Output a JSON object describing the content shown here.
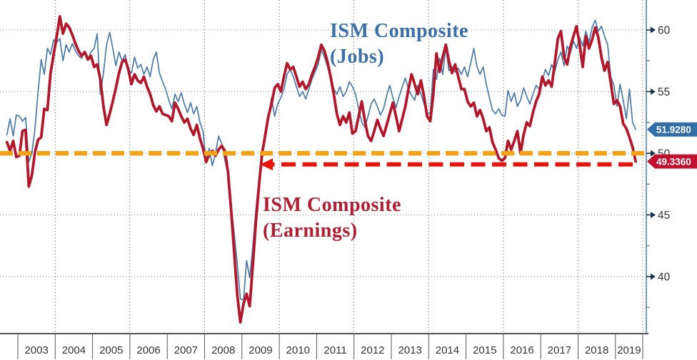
{
  "chart_data": {
    "type": "line",
    "title": "",
    "x_axis": {
      "start": "2002-09",
      "step": "1 month",
      "end": "2019-07",
      "years": [
        "2003",
        "2004",
        "2005",
        "2006",
        "2007",
        "2008",
        "2009",
        "2010",
        "2011",
        "2012",
        "2013",
        "2014",
        "2015",
        "2016",
        "2017",
        "2018",
        "2019"
      ],
      "gridline_years": [
        2004,
        2006,
        2008,
        2010,
        2012,
        2014,
        2016,
        2018
      ]
    },
    "y_axis": {
      "side": "right",
      "ticks": [
        60,
        55,
        50,
        45,
        40
      ],
      "minor_ticks": [
        57.5,
        52.5,
        47.5,
        42.5,
        37.5
      ],
      "range": [
        36,
        62
      ],
      "grid": "dotted"
    },
    "series": [
      {
        "name": "ISM Composite (Jobs)",
        "color": "#4a7aa8",
        "width": 1.7,
        "last_value": 51.928,
        "badge": {
          "text": "51.9280",
          "bg": "#336fa7",
          "fg": "#ffffff"
        },
        "monthly_values": [
          51.5,
          52.8,
          51.4,
          53.1,
          53.0,
          52.6,
          52.9,
          49.3,
          50.0,
          52.0,
          55.0,
          57.6,
          56.4,
          58.5,
          58.0,
          59.2,
          59.0,
          59.3,
          57.5,
          58.8,
          58.2,
          58.9,
          58.3,
          57.9,
          57.7,
          58.3,
          57.6,
          58.2,
          58.5,
          59.7,
          54.8,
          56.5,
          58.8,
          59.8,
          58.5,
          57.1,
          58.2,
          57.5,
          58.0,
          56.8,
          56.5,
          57.8,
          56.9,
          57.2,
          56.4,
          57.0,
          56.2,
          57.6,
          58.2,
          56.5,
          55.8,
          55.2,
          54.3,
          53.6,
          54.8,
          54.2,
          54.9,
          54.0,
          53.3,
          54.1,
          53.2,
          53.8,
          52.5,
          51.8,
          49.2,
          50.4,
          49.0,
          50.0,
          51.4,
          50.8,
          49.5,
          48.3,
          46.0,
          43.5,
          41.0,
          38.2,
          38.1,
          41.3,
          39.9,
          42.5,
          45.5,
          48.0,
          50.0,
          51.5,
          53.0,
          54.5,
          53.0,
          54.0,
          54.5,
          55.2,
          56.4,
          56.8,
          56.2,
          55.4,
          54.6,
          55.0,
          54.4,
          55.2,
          56.0,
          56.6,
          57.2,
          58.4,
          57.8,
          57.0,
          56.0,
          55.2,
          54.8,
          55.4,
          54.6,
          55.0,
          55.8,
          55.4,
          54.8,
          53.6,
          52.5,
          52.1,
          53.0,
          54.0,
          54.4,
          53.8,
          53.1,
          53.6,
          54.7,
          55.5,
          54.5,
          53.7,
          54.6,
          55.4,
          56.1,
          55.2,
          54.7,
          54.3,
          55.5,
          54.8,
          54.0,
          53.2,
          53.3,
          56.8,
          56.0,
          57.7,
          56.4,
          58.6,
          56.7,
          57.0,
          56.6,
          56.9,
          56.4,
          57.0,
          56.2,
          57.3,
          58.5,
          57.0,
          56.4,
          57.0,
          55.6,
          54.5,
          53.5,
          53.2,
          53.6,
          53.1,
          53.0,
          55.1,
          54.2,
          54.9,
          53.8,
          54.3,
          55.3,
          54.6,
          54.0,
          54.8,
          55.5,
          55.2,
          55.9,
          56.8,
          56.3,
          57.2,
          56.6,
          57.6,
          58.2,
          57.1,
          58.7,
          58.1,
          59.1,
          58.5,
          59.4,
          58.7,
          59.9,
          59.0,
          60.2,
          60.8,
          59.9,
          60.3,
          59.5,
          58.8,
          56.2,
          55.5,
          53.8,
          55.6,
          54.3,
          52.8,
          55.2,
          52.5,
          51.928
        ]
      },
      {
        "name": "ISM Composite (Earnings)",
        "color": "#b3172c",
        "width": 3.8,
        "last_value": 49.336,
        "badge": {
          "text": "49.3360",
          "bg": "#c11331",
          "fg": "#ffffff"
        },
        "monthly_values": [
          50.9,
          50.2,
          51.0,
          49.7,
          49.8,
          51.8,
          51.9,
          47.3,
          48.2,
          50.1,
          51.1,
          51.3,
          53.6,
          53.5,
          56.5,
          58.0,
          59.5,
          61.1,
          59.7,
          60.5,
          60.2,
          59.6,
          58.9,
          58.3,
          57.9,
          58.2,
          57.6,
          57.9,
          57.0,
          57.2,
          56.0,
          53.8,
          52.3,
          53.2,
          54.2,
          55.3,
          56.5,
          57.4,
          57.6,
          56.8,
          55.6,
          56.4,
          55.9,
          55.7,
          56.2,
          55.4,
          54.8,
          53.9,
          53.4,
          53.8,
          53.2,
          53.1,
          53.0,
          52.6,
          54.1,
          53.6,
          53.0,
          52.5,
          52.8,
          52.0,
          51.5,
          52.3,
          51.2,
          50.4,
          49.3,
          49.9,
          50.2,
          49.8,
          50.3,
          50.6,
          50.2,
          48.5,
          45.5,
          42.0,
          38.5,
          36.3,
          37.8,
          38.6,
          37.6,
          41.0,
          44.5,
          47.5,
          50.0,
          51.5,
          53.0,
          54.0,
          55.3,
          55.6,
          55.0,
          56.2,
          57.3,
          56.8,
          57.0,
          56.2,
          55.4,
          55.8,
          55.2,
          55.6,
          56.4,
          57.0,
          57.8,
          58.8,
          58.3,
          57.4,
          56.2,
          54.8,
          53.2,
          52.3,
          53.0,
          52.5,
          53.3,
          51.6,
          51.8,
          53.0,
          54.2,
          52.6,
          51.4,
          51.0,
          51.8,
          52.7,
          52.0,
          51.4,
          52.3,
          53.2,
          54.1,
          53.0,
          51.8,
          52.8,
          53.8,
          55.2,
          56.4,
          55.6,
          54.8,
          55.9,
          54.6,
          53.0,
          52.6,
          54.8,
          58.1,
          56.6,
          57.8,
          58.8,
          57.5,
          56.5,
          57.2,
          56.2,
          55.2,
          55.2,
          54.2,
          53.8,
          54.1,
          53.0,
          53.5,
          52.8,
          51.8,
          52.1,
          50.9,
          50.3,
          49.6,
          49.4,
          49.6,
          51.0,
          50.3,
          51.0,
          51.8,
          50.0,
          51.5,
          52.5,
          52.2,
          53.3,
          54.2,
          54.8,
          56.2,
          55.5,
          55.9,
          55.4,
          57.3,
          59.3,
          59.9,
          57.8,
          57.2,
          58.6,
          59.5,
          60.3,
          58.8,
          57.0,
          59.5,
          58.5,
          59.2,
          60.2,
          59.4,
          57.8,
          56.7,
          57.4,
          55.7,
          54.0,
          54.3,
          53.8,
          52.4,
          52.0,
          51.3,
          50.5,
          49.336
        ]
      }
    ],
    "reference_lines": {
      "orange_dashed": {
        "value": 50,
        "color": "#f0a318",
        "style": "dashed"
      },
      "red_dashed_arrow": {
        "value": 49.1,
        "color": "#e5150e",
        "style": "dashed",
        "direction": "left"
      }
    },
    "annotations": {
      "jobs_label": {
        "line1": "ISM Composite",
        "line2": "(Jobs)",
        "color": "#3a6fa8"
      },
      "earnings_label": {
        "line1": "ISM Composite",
        "line2": "(Earnings)",
        "color": "#b01e31"
      }
    },
    "legend_position": "annotations-on-plot",
    "colors": {
      "grid": "#7f7f7f",
      "bottom_axis": "#1a1a1a",
      "right_axis": "#4a7aa8",
      "tick_arrow": "#16334f",
      "axis_text": "#333333"
    }
  }
}
